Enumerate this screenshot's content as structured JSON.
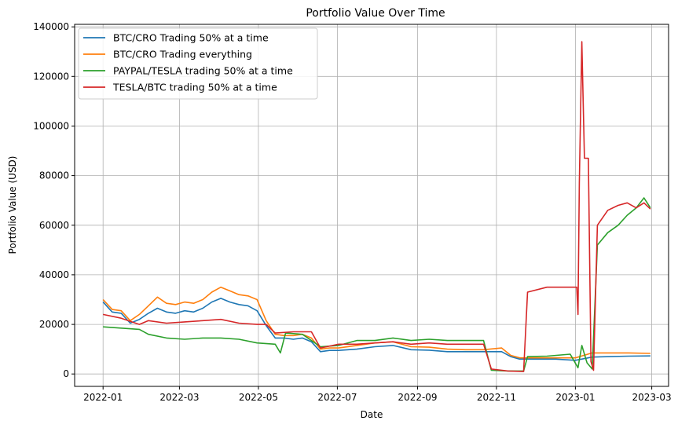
{
  "chart_data": {
    "type": "line",
    "title": "Portfolio Value Over Time",
    "xlabel": "Date",
    "ylabel": "Portfolio Value (USD)",
    "grid": true,
    "legend_position": "top-left",
    "xlim": [
      "2021-12-10",
      "2023-03-14"
    ],
    "ylim": [
      -5000,
      141000
    ],
    "x_ticks": [
      "2022-01",
      "2022-03",
      "2022-05",
      "2022-07",
      "2022-09",
      "2022-11",
      "2023-01",
      "2023-03"
    ],
    "y_ticks": [
      0,
      20000,
      40000,
      60000,
      80000,
      100000,
      120000,
      140000
    ],
    "series": [
      {
        "name": "BTC/CRO Trading 50% at a time",
        "color": "#1f77b4",
        "points": [
          [
            "2022-01-01",
            29000
          ],
          [
            "2022-01-08",
            25000
          ],
          [
            "2022-01-15",
            24500
          ],
          [
            "2022-01-22",
            20500
          ],
          [
            "2022-01-29",
            22000
          ],
          [
            "2022-02-05",
            24500
          ],
          [
            "2022-02-12",
            26500
          ],
          [
            "2022-02-19",
            25000
          ],
          [
            "2022-02-26",
            24500
          ],
          [
            "2022-03-05",
            25500
          ],
          [
            "2022-03-12",
            25000
          ],
          [
            "2022-03-19",
            26500
          ],
          [
            "2022-03-26",
            29000
          ],
          [
            "2022-04-02",
            30500
          ],
          [
            "2022-04-09",
            29000
          ],
          [
            "2022-04-16",
            28000
          ],
          [
            "2022-04-23",
            27500
          ],
          [
            "2022-04-30",
            25500
          ],
          [
            "2022-05-07",
            19500
          ],
          [
            "2022-05-14",
            14500
          ],
          [
            "2022-05-21",
            14500
          ],
          [
            "2022-05-28",
            14000
          ],
          [
            "2022-06-04",
            14500
          ],
          [
            "2022-06-11",
            13000
          ],
          [
            "2022-06-18",
            9000
          ],
          [
            "2022-06-25",
            9500
          ],
          [
            "2022-07-02",
            9500
          ],
          [
            "2022-07-16",
            10000
          ],
          [
            "2022-07-30",
            11000
          ],
          [
            "2022-08-13",
            11500
          ],
          [
            "2022-08-27",
            9800
          ],
          [
            "2022-09-10",
            9600
          ],
          [
            "2022-09-24",
            9000
          ],
          [
            "2022-10-08",
            9000
          ],
          [
            "2022-10-22",
            9000
          ],
          [
            "2022-11-05",
            9000
          ],
          [
            "2022-11-12",
            7000
          ],
          [
            "2022-11-19",
            6000
          ],
          [
            "2022-12-03",
            6000
          ],
          [
            "2022-12-17",
            6000
          ],
          [
            "2023-01-01",
            5500
          ],
          [
            "2023-01-14",
            6800
          ],
          [
            "2023-01-28",
            7000
          ],
          [
            "2023-02-11",
            7200
          ],
          [
            "2023-02-28",
            7300
          ]
        ]
      },
      {
        "name": "BTC/CRO Trading everything",
        "color": "#ff7f0e",
        "points": [
          [
            "2022-01-01",
            30000
          ],
          [
            "2022-01-08",
            26000
          ],
          [
            "2022-01-15",
            25500
          ],
          [
            "2022-01-22",
            21500
          ],
          [
            "2022-01-29",
            24000
          ],
          [
            "2022-02-05",
            27500
          ],
          [
            "2022-02-12",
            31000
          ],
          [
            "2022-02-19",
            28500
          ],
          [
            "2022-02-26",
            28000
          ],
          [
            "2022-03-05",
            29000
          ],
          [
            "2022-03-12",
            28500
          ],
          [
            "2022-03-19",
            30000
          ],
          [
            "2022-03-26",
            33000
          ],
          [
            "2022-04-02",
            35000
          ],
          [
            "2022-04-09",
            33500
          ],
          [
            "2022-04-16",
            32000
          ],
          [
            "2022-04-23",
            31500
          ],
          [
            "2022-04-30",
            30000
          ],
          [
            "2022-05-07",
            21500
          ],
          [
            "2022-05-14",
            16000
          ],
          [
            "2022-05-21",
            15500
          ],
          [
            "2022-05-28",
            15500
          ],
          [
            "2022-06-04",
            16000
          ],
          [
            "2022-06-11",
            14500
          ],
          [
            "2022-06-18",
            10000
          ],
          [
            "2022-06-25",
            10500
          ],
          [
            "2022-07-02",
            10500
          ],
          [
            "2022-07-16",
            11500
          ],
          [
            "2022-07-30",
            12500
          ],
          [
            "2022-08-13",
            13000
          ],
          [
            "2022-08-27",
            11000
          ],
          [
            "2022-09-10",
            10800
          ],
          [
            "2022-09-24",
            10000
          ],
          [
            "2022-10-08",
            9800
          ],
          [
            "2022-10-22",
            9800
          ],
          [
            "2022-11-05",
            10500
          ],
          [
            "2022-11-12",
            7500
          ],
          [
            "2022-11-19",
            6500
          ],
          [
            "2022-12-03",
            6500
          ],
          [
            "2022-12-17",
            6500
          ],
          [
            "2023-01-01",
            6500
          ],
          [
            "2023-01-14",
            8500
          ],
          [
            "2023-01-28",
            8500
          ],
          [
            "2023-02-11",
            8500
          ],
          [
            "2023-02-28",
            8300
          ]
        ]
      },
      {
        "name": "PAYPAL/TESLA trading 50% at a time",
        "color": "#2ca02c",
        "points": [
          [
            "2022-01-01",
            19000
          ],
          [
            "2022-01-15",
            18500
          ],
          [
            "2022-01-29",
            18000
          ],
          [
            "2022-02-05",
            16000
          ],
          [
            "2022-02-19",
            14500
          ],
          [
            "2022-03-05",
            14000
          ],
          [
            "2022-03-19",
            14500
          ],
          [
            "2022-04-02",
            14500
          ],
          [
            "2022-04-16",
            14000
          ],
          [
            "2022-04-30",
            12500
          ],
          [
            "2022-05-14",
            12000
          ],
          [
            "2022-05-18",
            8500
          ],
          [
            "2022-05-22",
            16500
          ],
          [
            "2022-06-04",
            16000
          ],
          [
            "2022-06-18",
            11000
          ],
          [
            "2022-07-02",
            11500
          ],
          [
            "2022-07-16",
            13500
          ],
          [
            "2022-07-30",
            13500
          ],
          [
            "2022-08-13",
            14500
          ],
          [
            "2022-08-27",
            13500
          ],
          [
            "2022-09-10",
            14000
          ],
          [
            "2022-09-24",
            13500
          ],
          [
            "2022-10-08",
            13500
          ],
          [
            "2022-10-22",
            13500
          ],
          [
            "2022-10-28",
            1500
          ],
          [
            "2022-11-10",
            1200
          ],
          [
            "2022-11-22",
            1200
          ],
          [
            "2022-11-25",
            7000
          ],
          [
            "2022-12-10",
            7200
          ],
          [
            "2022-12-28",
            8000
          ],
          [
            "2023-01-03",
            2500
          ],
          [
            "2023-01-06",
            11500
          ],
          [
            "2023-01-10",
            4500
          ],
          [
            "2023-01-14",
            2000
          ],
          [
            "2023-01-18",
            52000
          ],
          [
            "2023-01-26",
            57000
          ],
          [
            "2023-02-03",
            60000
          ],
          [
            "2023-02-10",
            64000
          ],
          [
            "2023-02-17",
            67000
          ],
          [
            "2023-02-23",
            71000
          ],
          [
            "2023-02-28",
            67000
          ]
        ]
      },
      {
        "name": "TESLA/BTC trading 50% at a time",
        "color": "#d62728",
        "points": [
          [
            "2022-01-01",
            24000
          ],
          [
            "2022-01-15",
            22500
          ],
          [
            "2022-01-29",
            20000
          ],
          [
            "2022-02-05",
            21500
          ],
          [
            "2022-02-19",
            20500
          ],
          [
            "2022-03-05",
            21000
          ],
          [
            "2022-03-19",
            21500
          ],
          [
            "2022-04-02",
            22000
          ],
          [
            "2022-04-16",
            20500
          ],
          [
            "2022-04-30",
            20000
          ],
          [
            "2022-05-07",
            20000
          ],
          [
            "2022-05-14",
            16500
          ],
          [
            "2022-05-28",
            17000
          ],
          [
            "2022-06-11",
            17000
          ],
          [
            "2022-06-18",
            10500
          ],
          [
            "2022-07-02",
            12000
          ],
          [
            "2022-07-16",
            12000
          ],
          [
            "2022-07-30",
            12500
          ],
          [
            "2022-08-13",
            13000
          ],
          [
            "2022-08-27",
            12000
          ],
          [
            "2022-09-10",
            12500
          ],
          [
            "2022-09-24",
            12000
          ],
          [
            "2022-10-08",
            12000
          ],
          [
            "2022-10-22",
            12000
          ],
          [
            "2022-10-28",
            2000
          ],
          [
            "2022-11-10",
            1200
          ],
          [
            "2022-11-22",
            1000
          ],
          [
            "2022-11-25",
            33000
          ],
          [
            "2022-12-10",
            35000
          ],
          [
            "2022-12-28",
            35000
          ],
          [
            "2023-01-02",
            35000
          ],
          [
            "2023-01-03",
            24000
          ],
          [
            "2023-01-04",
            77000
          ],
          [
            "2023-01-06",
            134000
          ],
          [
            "2023-01-08",
            87000
          ],
          [
            "2023-01-11",
            87000
          ],
          [
            "2023-01-13",
            5000
          ],
          [
            "2023-01-15",
            1500
          ],
          [
            "2023-01-18",
            60000
          ],
          [
            "2023-01-26",
            66000
          ],
          [
            "2023-02-03",
            68000
          ],
          [
            "2023-02-10",
            69000
          ],
          [
            "2023-02-17",
            67000
          ],
          [
            "2023-02-23",
            69000
          ],
          [
            "2023-02-28",
            66500
          ]
        ]
      }
    ]
  }
}
